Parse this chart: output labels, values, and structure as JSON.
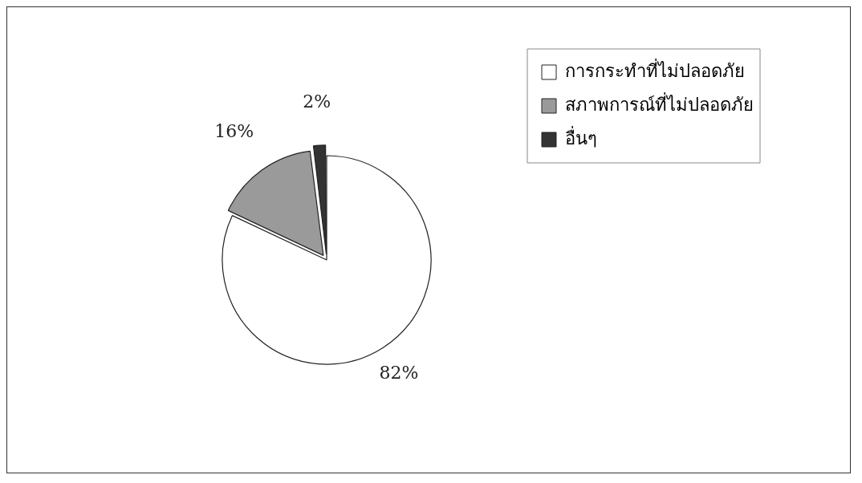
{
  "chart_data": {
    "type": "pie",
    "categories": [
      "การกระทำที่ไม่ปลอดภัย",
      "สภาพการณ์ที่ไม่ปลอดภัย",
      "อื่นๆ"
    ],
    "values": [
      82,
      16,
      2
    ],
    "colors": [
      "#ffffff",
      "#9a9a9a",
      "#333333"
    ],
    "value_labels": [
      "82%",
      "16%",
      "2%"
    ],
    "legend": "top right"
  }
}
